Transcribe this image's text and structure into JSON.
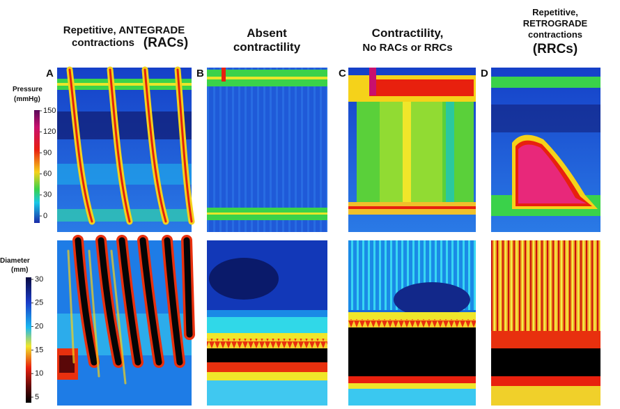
{
  "columns": [
    {
      "letter": "A",
      "heading": [
        "Repetitive, ANTEGRADE",
        "contractions "
      ],
      "emphasis": "(RACs)"
    },
    {
      "letter": "B",
      "heading": [
        "Absent",
        "contractility"
      ]
    },
    {
      "letter": "C",
      "heading": [
        "Contractility,",
        "No RACs or RRCs"
      ]
    },
    {
      "letter": "D",
      "heading": [
        "Repetitive,",
        "RETROGRADE",
        "contractions"
      ],
      "emphasis": "(RRCs)"
    }
  ],
  "pressure_scale": {
    "label": [
      "Pressure",
      "(mmHg)"
    ],
    "ticks": [
      150,
      120,
      90,
      60,
      30,
      0
    ]
  },
  "diameter_scale": {
    "label": [
      "Diameter",
      "(mm)"
    ],
    "ticks": [
      30,
      25,
      20,
      15,
      10,
      5
    ]
  }
}
